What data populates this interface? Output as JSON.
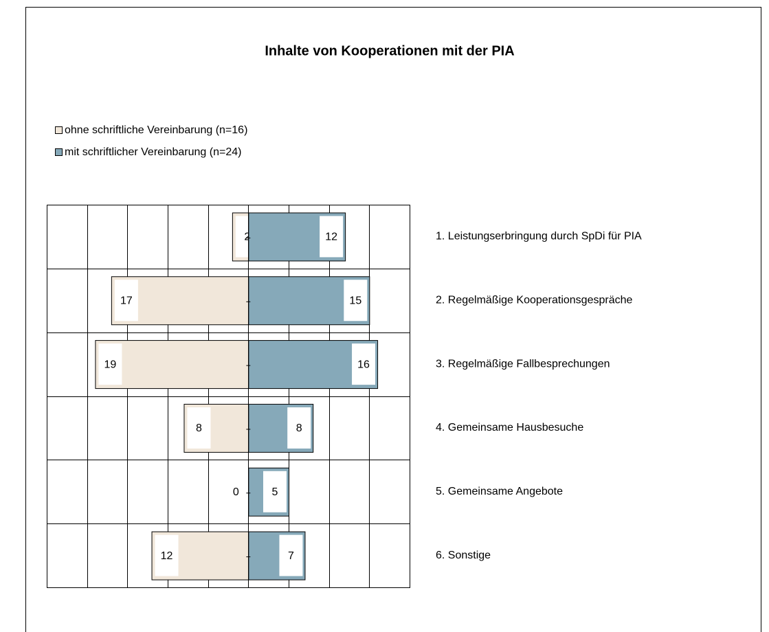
{
  "chart_data": {
    "type": "butterfly-bar",
    "title": "Inhalte von Kooperationen mit der PIA",
    "categories": [
      "1. Leistungserbringung durch SpDi für PIA",
      "2. Regelmäßige Kooperationsgespräche",
      "3. Regelmäßige Fallbesprechungen",
      "4. Gemeinsame Hausbesuche",
      "5. Gemeinsame Angebote",
      "6. Sonstige"
    ],
    "series": [
      {
        "name": "ohne schriftliche Vereinbarung (n=16)",
        "color": "#f1e7da",
        "values": [
          -2,
          -17,
          -19,
          -8,
          0,
          -12
        ],
        "value_labels": [
          "2",
          "17",
          "19",
          "8",
          "0",
          "12"
        ]
      },
      {
        "name": "mit schriftlicher Vereinbarung (n=24)",
        "color": "#86a9b9",
        "values": [
          12,
          15,
          16,
          8,
          5,
          7
        ]
      }
    ],
    "xlim": [
      -25,
      20
    ],
    "xticks": [
      -25,
      -20,
      -15,
      -10,
      -5,
      0,
      5,
      10,
      15,
      20
    ],
    "grid": true,
    "legend": "top-left"
  }
}
